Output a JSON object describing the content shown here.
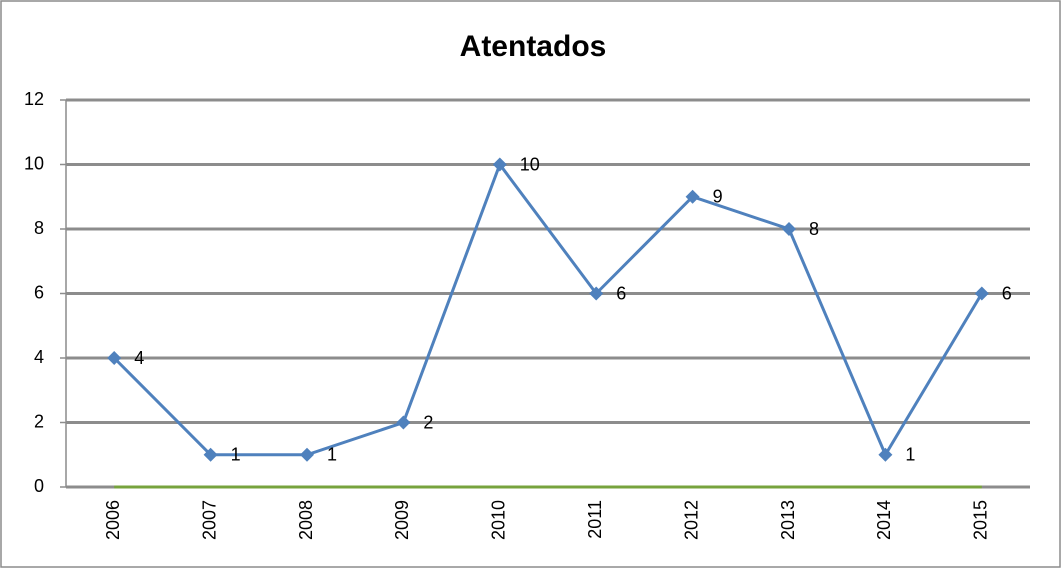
{
  "chart_data": {
    "type": "line",
    "title": "Atentados",
    "categories": [
      "2006",
      "2007",
      "2008",
      "2009",
      "2010",
      "2011",
      "2012",
      "2013",
      "2014",
      "2015"
    ],
    "series": [
      {
        "color": "#4f81bd",
        "values": [
          4,
          1,
          1,
          2,
          10,
          6,
          9,
          8,
          1,
          6
        ]
      }
    ],
    "ylim": [
      0,
      12
    ],
    "yticks": [
      0,
      2,
      4,
      6,
      8,
      10,
      12
    ],
    "grid": true
  }
}
